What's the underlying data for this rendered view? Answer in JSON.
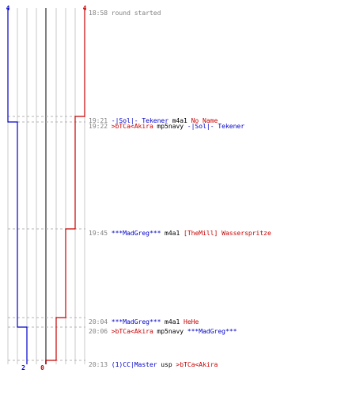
{
  "chart_data": {
    "type": "line",
    "score_range": [
      0,
      8
    ],
    "time_axis_minutes": [
      0,
      15
    ],
    "colors": {
      "blue": "#0000c8",
      "red": "#c80000",
      "neutral": "#000000",
      "time": "#808080",
      "grid": "#c8c8c8",
      "grid_mid": "#808080",
      "dash": "#b4b4b4"
    },
    "series": [
      {
        "color_key": "blue",
        "start_value": 4,
        "end_value": 2,
        "steps": [
          {
            "minute": 0,
            "value": 4
          },
          {
            "minute": 4,
            "value": 3
          },
          {
            "minute": 13,
            "value": 2
          },
          {
            "minute": 15,
            "value": 2
          }
        ]
      },
      {
        "color_key": "red",
        "start_value": 4,
        "end_value": 0,
        "steps": [
          {
            "minute": 0,
            "value": 4
          },
          {
            "minute": 3,
            "value": 3
          },
          {
            "minute": 6,
            "value": 2
          },
          {
            "minute": 11,
            "value": 1
          },
          {
            "minute": 15,
            "value": 0
          }
        ]
      }
    ],
    "events": [
      {
        "time": "18:58",
        "minute": 0,
        "parts": [
          {
            "text": "round started",
            "color_key": "time"
          }
        ]
      },
      {
        "time": "19:21",
        "minute": 3,
        "parts": [
          {
            "text": "-|Sol|- Tekener",
            "color_key": "blue"
          },
          {
            "text": "m4a1",
            "color_key": "neutral"
          },
          {
            "text": "No Name",
            "color_key": "red"
          }
        ]
      },
      {
        "time": "19:22",
        "minute": 4,
        "parts": [
          {
            "text": ">bTCa<Akira",
            "color_key": "red"
          },
          {
            "text": "mp5navy",
            "color_key": "neutral"
          },
          {
            "text": "-|Sol|- Tekener",
            "color_key": "blue"
          }
        ]
      },
      {
        "time": "19:45",
        "minute": 6,
        "parts": [
          {
            "text": "***MadGreg***",
            "color_key": "blue"
          },
          {
            "text": "m4a1",
            "color_key": "neutral"
          },
          {
            "text": "[TheMill] Wasserspritze",
            "color_key": "red"
          }
        ]
      },
      {
        "time": "20:04",
        "minute": 11,
        "parts": [
          {
            "text": "***MadGreg***",
            "color_key": "blue"
          },
          {
            "text": "m4a1",
            "color_key": "neutral"
          },
          {
            "text": "HeHe",
            "color_key": "red"
          }
        ]
      },
      {
        "time": "20:06",
        "minute": 13,
        "parts": [
          {
            "text": ">bTCa<Akira",
            "color_key": "red"
          },
          {
            "text": "mp5navy",
            "color_key": "neutral"
          },
          {
            "text": "***MadGreg***",
            "color_key": "blue"
          }
        ]
      },
      {
        "time": "20:13",
        "minute": 15,
        "parts": [
          {
            "text": "(1)CC|Master",
            "color_key": "blue"
          },
          {
            "text": "usp",
            "color_key": "neutral"
          },
          {
            "text": ">bTCa<Akira",
            "color_key": "red"
          }
        ]
      }
    ]
  }
}
